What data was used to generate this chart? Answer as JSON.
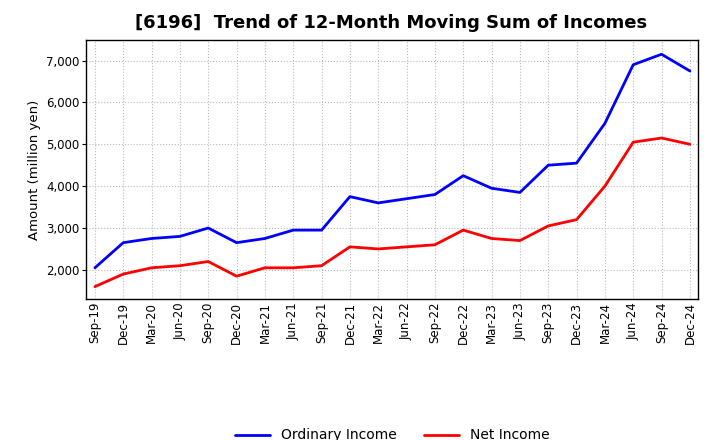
{
  "title": "[6196]  Trend of 12-Month Moving Sum of Incomes",
  "ylabel": "Amount (million yen)",
  "x_labels": [
    "Sep-19",
    "Dec-19",
    "Mar-20",
    "Jun-20",
    "Sep-20",
    "Dec-20",
    "Mar-21",
    "Jun-21",
    "Sep-21",
    "Dec-21",
    "Mar-22",
    "Jun-22",
    "Sep-22",
    "Dec-22",
    "Mar-23",
    "Jun-23",
    "Sep-23",
    "Dec-23",
    "Mar-24",
    "Jun-24",
    "Sep-24",
    "Dec-24"
  ],
  "ordinary_income": [
    2050,
    2650,
    2750,
    2800,
    3000,
    2650,
    2750,
    2950,
    2950,
    3750,
    3600,
    3700,
    3800,
    4250,
    3950,
    3850,
    4500,
    4550,
    5500,
    6900,
    7150,
    6750
  ],
  "net_income": [
    1600,
    1900,
    2050,
    2100,
    2200,
    1850,
    2050,
    2050,
    2100,
    2550,
    2500,
    2550,
    2600,
    2950,
    2750,
    2700,
    3050,
    3200,
    4000,
    5050,
    5150,
    5000
  ],
  "ordinary_color": "#0000ff",
  "net_color": "#ff0000",
  "ylim_min": 1300,
  "ylim_max": 7500,
  "yticks": [
    2000,
    3000,
    4000,
    5000,
    6000,
    7000
  ],
  "bg_color": "#ffffff",
  "plot_bg_color": "#ffffff",
  "grid_color": "#bbbbbb",
  "line_width": 2.0,
  "title_fontsize": 13,
  "legend_fontsize": 10,
  "tick_fontsize": 8.5
}
